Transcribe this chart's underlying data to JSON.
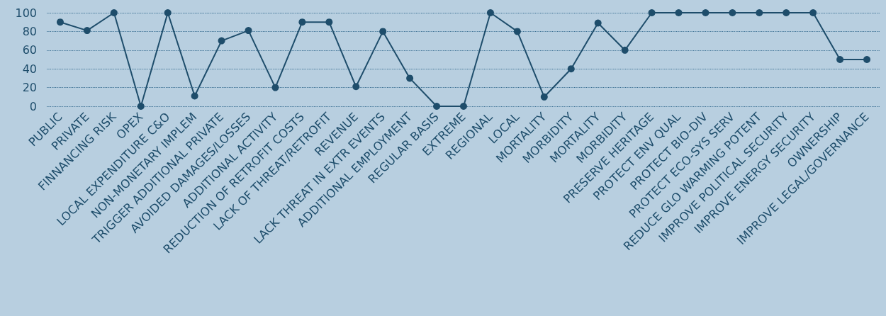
{
  "chart_data": {
    "type": "line",
    "categories": [
      "PUBLIC",
      "PRIVATE",
      "FINNANCING RISK",
      "OPEX",
      "LOCAL EXPENDITURE C&O",
      "NON-MONETARY IMPLEM",
      "TRIGGER ADDITIONAL PRIVATE",
      "AVOIDED DAMAGES/LOSSES",
      "ADDITIONAL ACTIVITY",
      "REDUCTION OF RETROFIT COSTS",
      "LACK OF THREAT/RETROFIT",
      "REVENUE",
      "LACK THREAT IN EXTR EVENTS",
      "ADDITIONAL EMPLOYMENT",
      "REGULAR BASIS",
      "EXTREME",
      "REGIONAL",
      "LOCAL",
      "MORTALITY",
      "MORBIDITY",
      "MORTALITY",
      "MORBIDITY",
      "PRESERVE HERITAGE",
      "PROTECT ENV QUAL",
      "PROTECT BIO-DIV",
      "PROTECT ECO-SYS SERV",
      "REDUCE GLO WARMING POTENT",
      "IMPROVE POLITICAL SECURITY",
      "IMPROVE ENERGY SECURITY",
      "OWNERSHIP",
      "IMPROVE LEGAL/GOVERNANCE"
    ],
    "series": [
      {
        "color": "#1e4d6b",
        "values": [
          90,
          81,
          100,
          0,
          100,
          11,
          70,
          81,
          20,
          90,
          90,
          21,
          80,
          30,
          0,
          0,
          100,
          80,
          10,
          40,
          89,
          60,
          100,
          100,
          100,
          100,
          100,
          100,
          100,
          50,
          50
        ]
      }
    ],
    "ylim": [
      0,
      100
    ],
    "yticks": [
      0,
      20,
      40,
      60,
      80,
      100
    ],
    "grid": "y",
    "marker": "circle",
    "line_style": "solid"
  }
}
